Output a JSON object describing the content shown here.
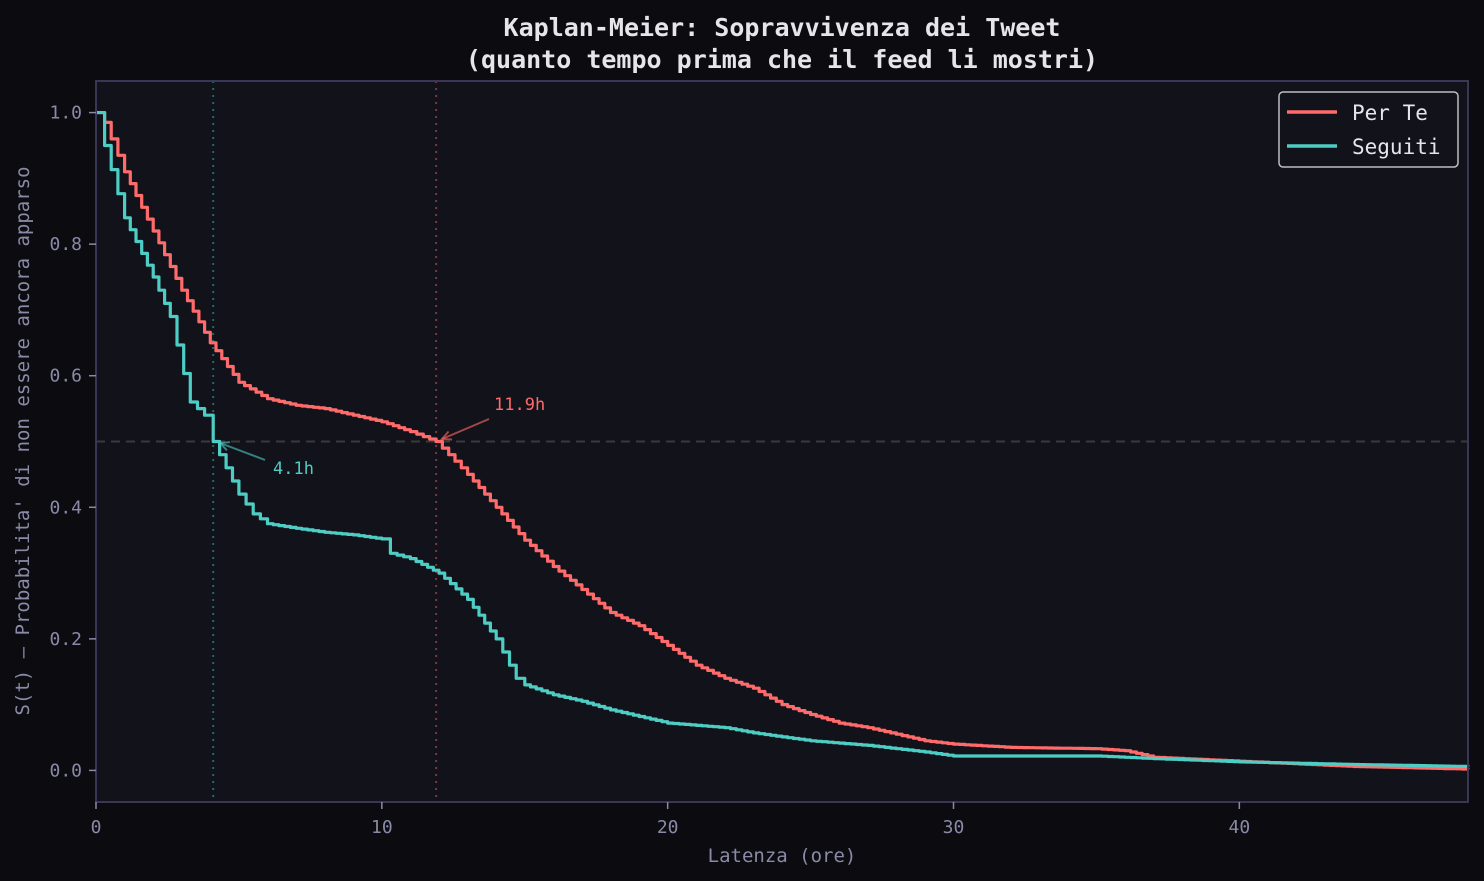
{
  "chart_data": {
    "type": "line",
    "title": "Kaplan-Meier: Sopravvivenza dei Tweet",
    "subtitle": "(quanto tempo prima che il feed li mostri)",
    "xlabel": "Latenza (ore)",
    "ylabel": "S(t) — Probabilita' di non essere ancora apparso",
    "xlim": [
      0,
      48
    ],
    "ylim": [
      -0.048,
      1.048
    ],
    "xticks": [
      0,
      10,
      20,
      30,
      40
    ],
    "xtick_labels": [
      "0",
      "10",
      "20",
      "30",
      "40"
    ],
    "yticks": [
      0.0,
      0.2,
      0.4,
      0.6,
      0.8,
      1.0
    ],
    "ytick_labels": [
      "0.0",
      "0.2",
      "0.4",
      "0.6",
      "0.8",
      "1.0"
    ],
    "grid": false,
    "legend_position": "upper right",
    "reference_line": {
      "y": 0.5,
      "style": "dashed",
      "color": "#3a3a3a"
    },
    "series": [
      {
        "name": "Per Te",
        "color": "#ff6b6b",
        "median": 11.9,
        "median_label": "11.9h",
        "x": [
          0,
          0.3,
          1,
          2,
          3,
          4,
          5,
          6,
          7,
          8,
          9,
          10,
          11,
          11.9,
          13,
          14,
          15,
          16,
          17,
          18,
          19,
          20,
          21,
          22,
          23,
          24,
          25,
          26,
          27,
          28,
          29,
          30,
          32,
          35,
          36,
          37,
          40,
          44,
          48
        ],
        "values": [
          1.0,
          0.985,
          0.91,
          0.82,
          0.73,
          0.65,
          0.59,
          0.565,
          0.555,
          0.55,
          0.54,
          0.53,
          0.515,
          0.5,
          0.45,
          0.4,
          0.35,
          0.31,
          0.275,
          0.24,
          0.22,
          0.19,
          0.16,
          0.14,
          0.125,
          0.1,
          0.085,
          0.072,
          0.065,
          0.055,
          0.045,
          0.04,
          0.035,
          0.033,
          0.03,
          0.02,
          0.014,
          0.006,
          0.002
        ]
      },
      {
        "name": "Seguiti",
        "color": "#4ecdc4",
        "median": 4.1,
        "median_label": "4.1h",
        "x": [
          0,
          0.3,
          1,
          2,
          2.6,
          3.3,
          3.8,
          4.1,
          5,
          5.5,
          6,
          7,
          8,
          9,
          10,
          10.3,
          11,
          12,
          13,
          14,
          14.7,
          15,
          16,
          17,
          18,
          19,
          20,
          22,
          23,
          25,
          27,
          29,
          30,
          35,
          37,
          40,
          44,
          48
        ],
        "values": [
          1.0,
          0.95,
          0.84,
          0.75,
          0.69,
          0.56,
          0.54,
          0.5,
          0.42,
          0.39,
          0.375,
          0.368,
          0.362,
          0.358,
          0.352,
          0.33,
          0.322,
          0.3,
          0.26,
          0.2,
          0.14,
          0.13,
          0.115,
          0.105,
          0.092,
          0.082,
          0.072,
          0.065,
          0.057,
          0.045,
          0.038,
          0.028,
          0.022,
          0.022,
          0.018,
          0.013,
          0.009,
          0.006
        ]
      }
    ],
    "annotations": [
      {
        "text": "11.9h",
        "x": 11.9,
        "y": 0.5,
        "series": "Per Te"
      },
      {
        "text": "4.1h",
        "x": 4.1,
        "y": 0.5,
        "series": "Seguiti"
      }
    ]
  },
  "legend": {
    "items": [
      {
        "label": "Per Te",
        "color": "#ff6b6b"
      },
      {
        "label": "Seguiti",
        "color": "#4ecdc4"
      }
    ]
  },
  "colors": {
    "background": "#0b0b10",
    "plot_background": "#12121a",
    "axis_frame": "#3a3656",
    "tick_text": "#8a8aa8",
    "title_text": "#e6e6ea"
  }
}
